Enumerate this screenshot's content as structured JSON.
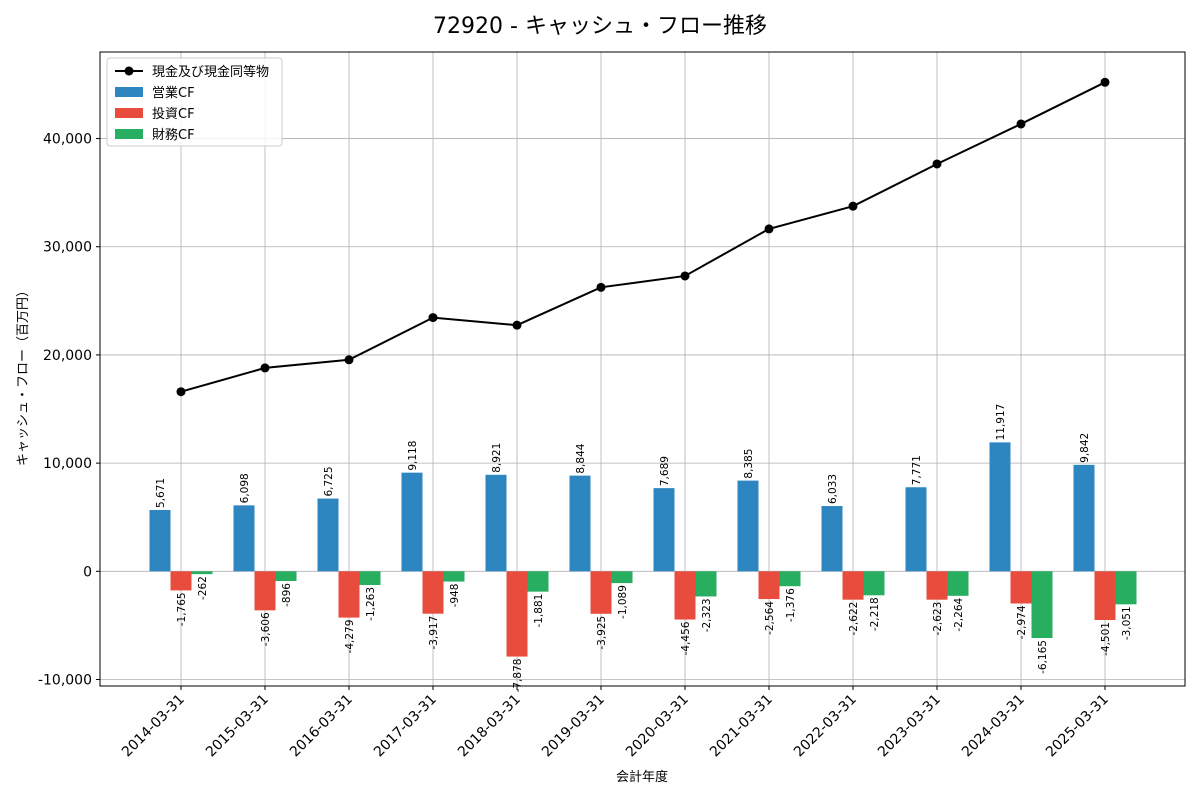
{
  "chart_data": {
    "type": "bar",
    "title": "72920 - キャッシュ・フロー推移",
    "xlabel": "会計年度",
    "ylabel": "キャッシュ・フロー（百万円）",
    "ylim": [
      -10600,
      48000
    ],
    "yticks": [
      -10000,
      0,
      10000,
      20000,
      30000,
      40000
    ],
    "ytick_labels": [
      "-10,000",
      "0",
      "10,000",
      "20,000",
      "30,000",
      "40,000"
    ],
    "grid": true,
    "legend_position": "top-left",
    "categories": [
      "2014-03-31",
      "2015-03-31",
      "2016-03-31",
      "2017-03-31",
      "2018-03-31",
      "2019-03-31",
      "2020-03-31",
      "2021-03-31",
      "2022-03-31",
      "2023-03-31",
      "2024-03-31",
      "2025-03-31"
    ],
    "series": [
      {
        "name": "現金及び現金同等物",
        "type": "line",
        "color": "#000000",
        "values": [
          16600,
          18800,
          19550,
          23450,
          22750,
          26250,
          27300,
          31650,
          33750,
          37650,
          41350,
          45200
        ]
      },
      {
        "name": "営業CF",
        "type": "bar",
        "color": "#2e86c1",
        "values": [
          5671,
          6098,
          6725,
          9118,
          8921,
          8844,
          7689,
          8385,
          6033,
          7771,
          11917,
          9842
        ],
        "labels": [
          "5,671",
          "6,098",
          "6,725",
          "9,118",
          "8,921",
          "8,844",
          "7,689",
          "8,385",
          "6,033",
          "7,771",
          "11,917",
          "9,842"
        ]
      },
      {
        "name": "投資CF",
        "type": "bar",
        "color": "#e74c3c",
        "values": [
          -1765,
          -3606,
          -4279,
          -3917,
          -7878,
          -3925,
          -4456,
          -2564,
          -2622,
          -2623,
          -2974,
          -4501
        ],
        "labels": [
          "-1,765",
          "-3,606",
          "-4,279",
          "-3,917",
          "-7,878",
          "-3,925",
          "-4,456",
          "-2,564",
          "-2,622",
          "-2,623",
          "-2,974",
          "-4,501"
        ]
      },
      {
        "name": "財務CF",
        "type": "bar",
        "color": "#27ae60",
        "values": [
          -262,
          -896,
          -1263,
          -948,
          -1881,
          -1089,
          -2323,
          -1376,
          -2218,
          -2264,
          -6165,
          -3051
        ],
        "labels": [
          "-262",
          "-896",
          "-1,263",
          "-948",
          "-1,881",
          "-1,089",
          "-2,323",
          "-1,376",
          "-2,218",
          "-2,264",
          "-6,165",
          "-3,051"
        ]
      }
    ]
  }
}
